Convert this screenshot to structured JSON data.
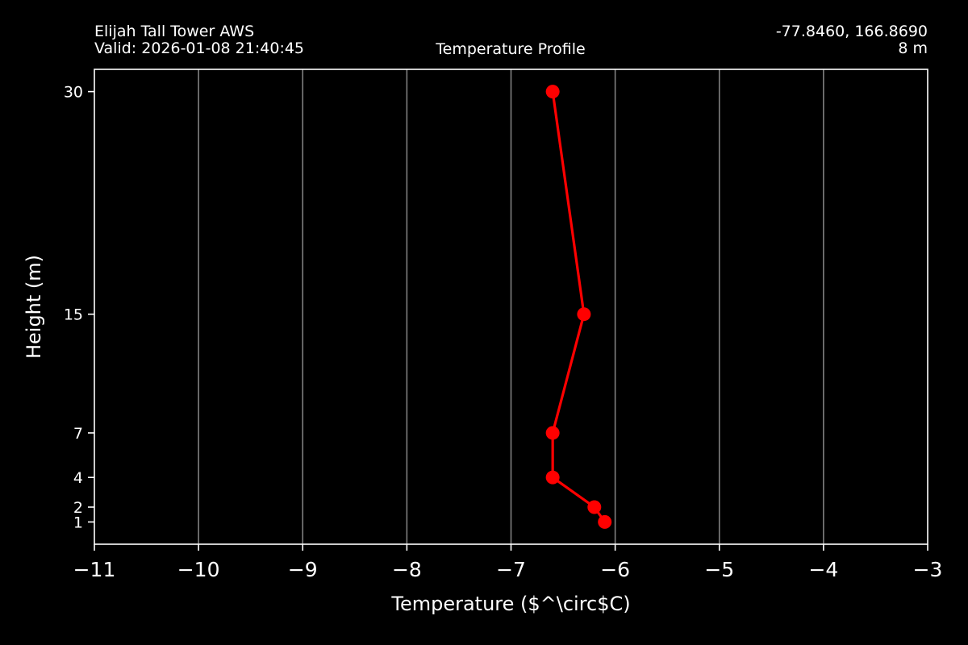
{
  "header": {
    "station": "Elijah Tall Tower AWS",
    "valid": "Valid: 2026-01-08 21:40:45",
    "title": "Temperature Profile",
    "coords": "-77.8460, 166.8690",
    "elevation": "8 m"
  },
  "chart_data": {
    "type": "line",
    "title": "Temperature Profile",
    "xlabel": "Temperature ($^\\circ$C)",
    "ylabel": "Height (m)",
    "xlim": [
      -11,
      -3
    ],
    "ylim": [
      -0.5,
      31.5
    ],
    "xticks": [
      -11,
      -10,
      -9,
      -8,
      -7,
      -6,
      -5,
      -4,
      -3
    ],
    "xtick_labels": [
      "−11",
      "−10",
      "−9",
      "−8",
      "−7",
      "−6",
      "−5",
      "−4",
      "−3"
    ],
    "yticks": [
      1,
      2,
      4,
      7,
      15,
      30
    ],
    "grid": "vertical",
    "series": [
      {
        "x": [
          -6.1,
          -6.2,
          -6.6,
          -6.6,
          -6.3,
          -6.6
        ],
        "y": [
          1,
          2,
          4,
          7,
          15,
          30
        ],
        "color": "#ff0000",
        "marker": "circle"
      }
    ],
    "colors": {
      "background": "#000000",
      "axes": "#ffffff",
      "grid": "#808080",
      "line": "#ff0000"
    }
  }
}
